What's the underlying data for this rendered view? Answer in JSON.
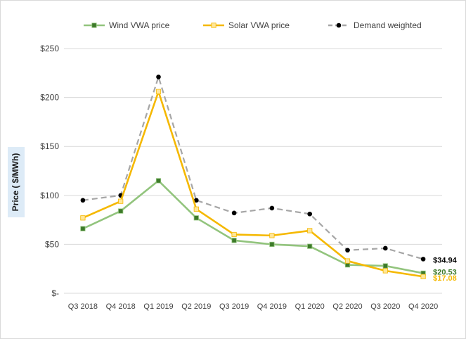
{
  "chart_data": {
    "type": "line",
    "categories": [
      "Q3 2018",
      "Q4 2018",
      "Q1 2019",
      "Q2 2019",
      "Q3 2019",
      "Q4 2019",
      "Q1 2020",
      "Q2 2020",
      "Q3 2020",
      "Q4 2020"
    ],
    "series": [
      {
        "name": "Wind VWA price",
        "color": "#92c47d",
        "marker_color": "#3d7a2a",
        "marker": "square",
        "dash": "solid",
        "values": [
          66,
          84,
          115,
          77,
          54,
          50,
          48,
          29,
          28,
          20.53
        ]
      },
      {
        "name": "Solar VWA price",
        "color": "#f5b800",
        "marker_color": "#ffe699",
        "marker": "square",
        "dash": "solid",
        "values": [
          77,
          94,
          206,
          86,
          60,
          59,
          64,
          33,
          23,
          17.08
        ]
      },
      {
        "name": "Demand weighted",
        "color": "#a6a6a6",
        "marker_color": "#000000",
        "marker": "circle",
        "dash": "dashed",
        "values": [
          95,
          100,
          221,
          95,
          82,
          87,
          81,
          44,
          46,
          34.94
        ]
      }
    ],
    "end_labels": [
      {
        "series": "Demand weighted",
        "text": "$34.94",
        "color": "#000000"
      },
      {
        "series": "Wind VWA price",
        "text": "$20.53",
        "color": "#3d7a2a"
      },
      {
        "series": "Solar VWA price",
        "text": "$17.08",
        "color": "#f5b800"
      }
    ],
    "ylabel": "Price ( $/MWh)",
    "ylabel_bg": "#ddebf7",
    "ylim": [
      0,
      250
    ],
    "y_ticks": [
      0,
      50,
      100,
      150,
      200,
      250
    ],
    "y_tick_labels": [
      "$-",
      "$50",
      "$100",
      "$150",
      "$200",
      "$250"
    ],
    "grid": true,
    "grid_color": "#d9d9d9",
    "legend_position": "top"
  }
}
